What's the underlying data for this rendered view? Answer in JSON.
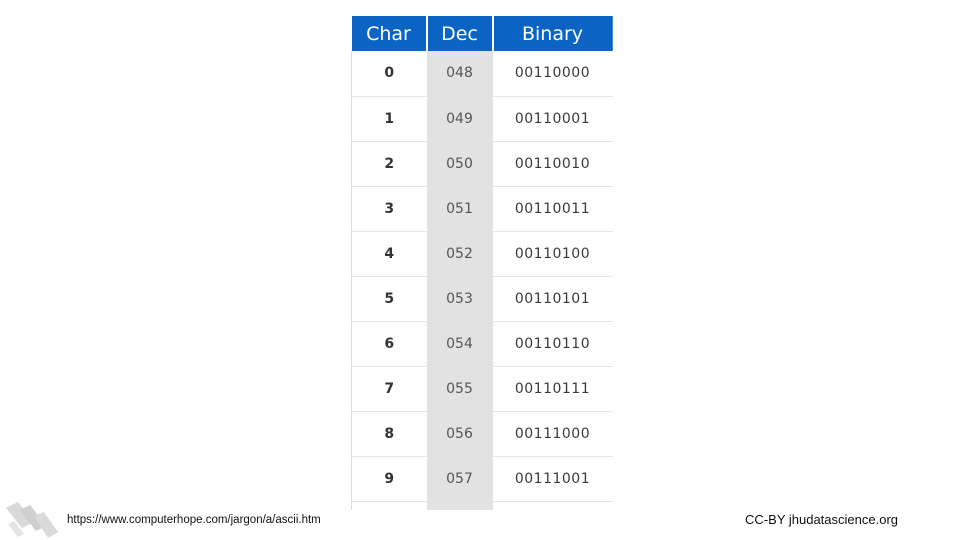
{
  "table": {
    "columns": [
      "Char",
      "Dec",
      "Binary"
    ],
    "rows": [
      {
        "char": "0",
        "dec": "048",
        "binary": "00110000"
      },
      {
        "char": "1",
        "dec": "049",
        "binary": "00110001"
      },
      {
        "char": "2",
        "dec": "050",
        "binary": "00110010"
      },
      {
        "char": "3",
        "dec": "051",
        "binary": "00110011"
      },
      {
        "char": "4",
        "dec": "052",
        "binary": "00110100"
      },
      {
        "char": "5",
        "dec": "053",
        "binary": "00110101"
      },
      {
        "char": "6",
        "dec": "054",
        "binary": "00110110"
      },
      {
        "char": "7",
        "dec": "055",
        "binary": "00110111"
      },
      {
        "char": "8",
        "dec": "056",
        "binary": "00111000"
      },
      {
        "char": "9",
        "dec": "057",
        "binary": "00111001"
      }
    ]
  },
  "footer": {
    "source_text": "https://www.computerhope.com/jargon/a/ascii.htm",
    "license_text": "CC-BY jhudatascience.org"
  },
  "colors": {
    "header_blue": "#0b64c4",
    "dec_column_gray": "#e2e2e2"
  },
  "icons": {
    "logo": "jhu-stripes-logo"
  }
}
